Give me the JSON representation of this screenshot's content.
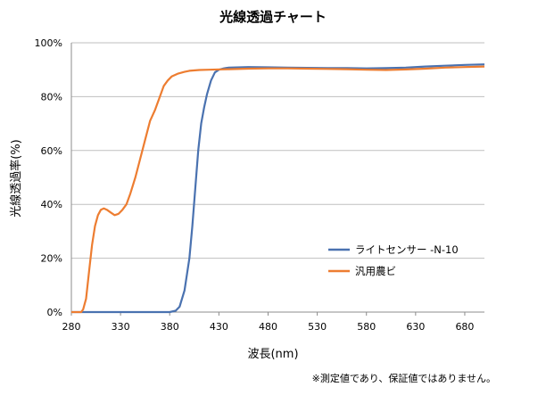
{
  "chart_data": {
    "type": "line",
    "title": "光線透過チャート",
    "xlabel": "波長(nm)",
    "ylabel": "光線透過率(%)",
    "xlim": [
      280,
      700
    ],
    "ylim": [
      0,
      100
    ],
    "x_ticks": [
      "280",
      "330",
      "380",
      "430",
      "480",
      "530",
      "580",
      "630",
      "680"
    ],
    "y_ticks": [
      "0%",
      "20%",
      "40%",
      "60%",
      "80%",
      "100%"
    ],
    "grid": "horizontal",
    "legend_position": "right",
    "note": "※測定値であり、保証値ではありません。",
    "series": [
      {
        "name": "ライトセンサー -N-10",
        "color": "#4a72b0",
        "points": [
          [
            280,
            0
          ],
          [
            300,
            0
          ],
          [
            320,
            0
          ],
          [
            340,
            0
          ],
          [
            360,
            0
          ],
          [
            380,
            0
          ],
          [
            386,
            0.5
          ],
          [
            390,
            2
          ],
          [
            395,
            8
          ],
          [
            400,
            20
          ],
          [
            403,
            32
          ],
          [
            406,
            46
          ],
          [
            409,
            60
          ],
          [
            412,
            70
          ],
          [
            415,
            76
          ],
          [
            418,
            81
          ],
          [
            422,
            86
          ],
          [
            426,
            89
          ],
          [
            430,
            90
          ],
          [
            435,
            90.5
          ],
          [
            440,
            90.8
          ],
          [
            460,
            91
          ],
          [
            480,
            90.9
          ],
          [
            500,
            90.8
          ],
          [
            520,
            90.7
          ],
          [
            540,
            90.6
          ],
          [
            560,
            90.6
          ],
          [
            580,
            90.5
          ],
          [
            600,
            90.6
          ],
          [
            620,
            90.8
          ],
          [
            640,
            91.2
          ],
          [
            660,
            91.5
          ],
          [
            680,
            91.8
          ],
          [
            700,
            92
          ]
        ]
      },
      {
        "name": "汎用農ビ",
        "color": "#ed7d31",
        "points": [
          [
            280,
            0
          ],
          [
            290,
            0
          ],
          [
            292,
            1
          ],
          [
            295,
            5
          ],
          [
            298,
            15
          ],
          [
            301,
            25
          ],
          [
            304,
            32
          ],
          [
            307,
            36
          ],
          [
            310,
            38
          ],
          [
            313,
            38.5
          ],
          [
            316,
            38
          ],
          [
            320,
            37
          ],
          [
            324,
            36
          ],
          [
            328,
            36.5
          ],
          [
            332,
            38
          ],
          [
            336,
            40
          ],
          [
            340,
            44
          ],
          [
            345,
            50
          ],
          [
            350,
            57
          ],
          [
            355,
            64
          ],
          [
            360,
            71
          ],
          [
            365,
            75
          ],
          [
            370,
            80
          ],
          [
            374,
            84
          ],
          [
            378,
            86
          ],
          [
            382,
            87.5
          ],
          [
            388,
            88.5
          ],
          [
            395,
            89.2
          ],
          [
            400,
            89.6
          ],
          [
            410,
            89.9
          ],
          [
            420,
            90
          ],
          [
            440,
            90.2
          ],
          [
            460,
            90.4
          ],
          [
            480,
            90.5
          ],
          [
            500,
            90.5
          ],
          [
            520,
            90.4
          ],
          [
            540,
            90.3
          ],
          [
            560,
            90.2
          ],
          [
            580,
            90
          ],
          [
            600,
            89.9
          ],
          [
            620,
            90.1
          ],
          [
            640,
            90.4
          ],
          [
            660,
            90.8
          ],
          [
            680,
            91
          ],
          [
            700,
            91.2
          ]
        ]
      }
    ]
  }
}
